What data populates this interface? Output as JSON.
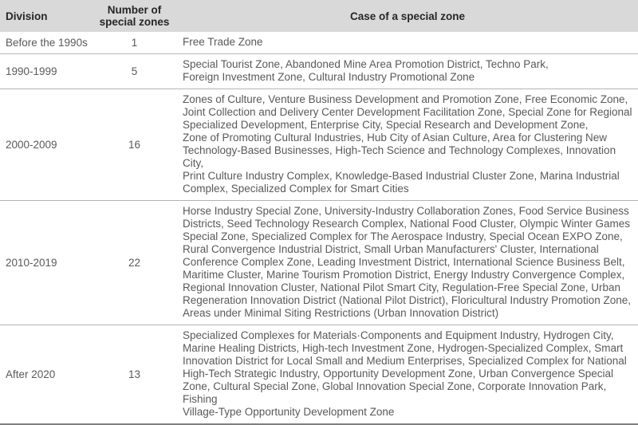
{
  "colors": {
    "header_background": "#d9d9d9",
    "header_text": "#262626",
    "body_text": "#595959",
    "row_divider": "#b3b3b3",
    "bottom_border": "#808080"
  },
  "table": {
    "header": {
      "division": "Division",
      "count": "Number of special zones",
      "case": "Case of a special zone"
    },
    "rows": [
      {
        "division": "Before the 1990s",
        "count": "1",
        "case_lines": [
          "Free Trade Zone"
        ]
      },
      {
        "division": "1990-1999",
        "count": "5",
        "case_lines": [
          "Special Tourist Zone, Abandoned Mine Area Promotion District, Techno Park,",
          "Foreign Investment Zone, Cultural Industry Promotional Zone"
        ]
      },
      {
        "division": "2000-2009",
        "count": "16",
        "case_lines": [
          "Zones of Culture, Venture Business Development and Promotion Zone, Free Economic Zone,",
          "Joint Collection and Delivery Center Development Facilitation Zone, Special Zone for Regional",
          "Specialized Development, Enterprise City, Special Research and Development Zone,",
          "Zone of Promoting Cultural Industries, Hub City of Asian Culture, Area for Clustering New",
          "Technology-Based Businesses, High-Tech Science and Technology Complexes, Innovation City,",
          "Print Culture Industry Complex, Knowledge-Based Industrial Cluster Zone, Marina Industrial",
          "Complex, Specialized Complex for Smart Cities"
        ]
      },
      {
        "division": "2010-2019",
        "count": "22",
        "case_lines": [
          "Horse Industry Special Zone, University-Industry Collaboration Zones, Food Service Business",
          "Districts, Seed Technology Research Complex, National Food Cluster, Olympic Winter Games",
          "Special Zone, Specialized Complex for The Aerospace Industry, Special Ocean EXPO Zone,",
          "Rural Convergence Industrial District, Small Urban Manufacturers' Cluster, International",
          "Conference Complex Zone, Leading Investment District, International Science Business Belt,",
          "Maritime Cluster, Marine Tourism Promotion District, Energy Industry Convergence Complex,",
          "Regional Innovation Cluster, National Pilot Smart City, Regulation-Free Special Zone, Urban",
          "Regeneration Innovation District (National Pilot District), Floricultural Industry Promotion Zone,",
          "Areas under Minimal Siting Restrictions (Urban Innovation District)"
        ]
      },
      {
        "division": "After 2020",
        "count": "13",
        "case_lines": [
          "Specialized Complexes for Materials·Components and Equipment Industry, Hydrogen City,",
          "Marine Healing Districts, High-tech Investment Zone, Hydrogen-Specialized Complex, Smart",
          "Innovation District for Local Small and Medium Enterprises, Specialized Complex for National",
          "High-Tech Strategic Industry, Opportunity Development Zone, Urban Convergence Special",
          "Zone, Cultural Special Zone, Global Innovation Special Zone, Corporate Innovation Park, Fishing",
          "Village-Type Opportunity Development Zone"
        ]
      }
    ]
  }
}
